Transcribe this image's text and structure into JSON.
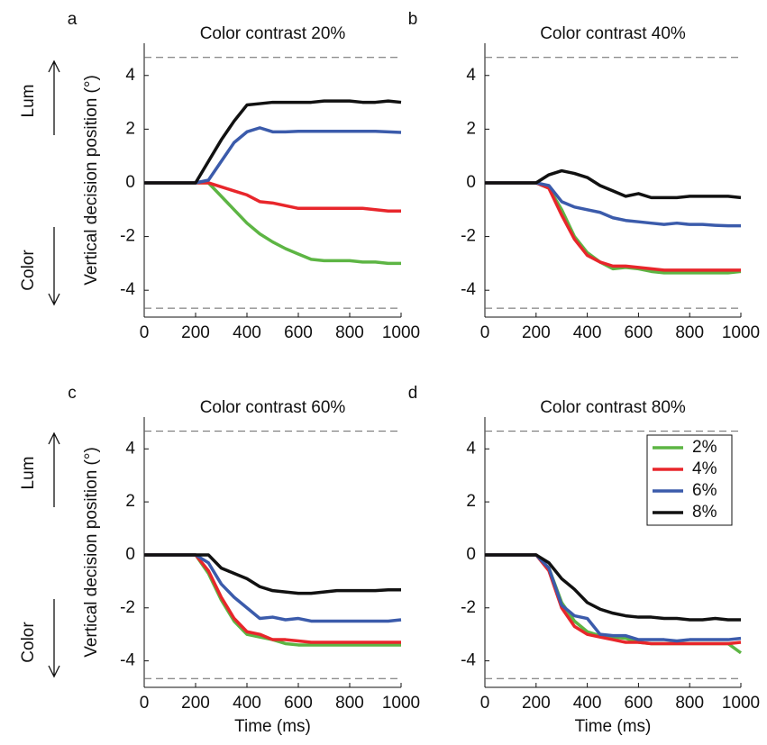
{
  "chart_data": [
    {
      "type": "line",
      "panel_label": "a",
      "title": "Color contrast 20%",
      "ylabel": "Vertical decision position (°)",
      "annotations": [
        "Lum",
        "Color"
      ],
      "x": [
        0,
        50,
        100,
        150,
        200,
        250,
        300,
        350,
        400,
        450,
        500,
        550,
        600,
        650,
        700,
        750,
        800,
        850,
        900,
        950,
        1000
      ],
      "xlim": [
        0,
        1000
      ],
      "ylim": [
        -5,
        5.2
      ],
      "xticks": [
        0,
        200,
        400,
        600,
        800,
        1000
      ],
      "yticks": [
        -4,
        -2,
        0,
        2,
        4
      ],
      "reference_lines": [
        4.67,
        -4.67
      ],
      "series": [
        {
          "color": "#5db544",
          "values": [
            0,
            0,
            0,
            0,
            0,
            0,
            -0.5,
            -1.0,
            -1.5,
            -1.9,
            -2.2,
            -2.45,
            -2.65,
            -2.85,
            -2.9,
            -2.9,
            -2.9,
            -2.95,
            -2.95,
            -3.0,
            -3.0
          ]
        },
        {
          "color": "#e8262b",
          "values": [
            0,
            0,
            0,
            0,
            0,
            0,
            -0.15,
            -0.3,
            -0.45,
            -0.7,
            -0.75,
            -0.85,
            -0.95,
            -0.95,
            -0.95,
            -0.95,
            -0.95,
            -0.95,
            -1.0,
            -1.05,
            -1.05
          ]
        },
        {
          "color": "#3b5bab",
          "values": [
            0,
            0,
            0,
            0,
            0,
            0.1,
            0.8,
            1.5,
            1.9,
            2.05,
            1.9,
            1.9,
            1.92,
            1.92,
            1.92,
            1.92,
            1.92,
            1.92,
            1.92,
            1.9,
            1.88
          ]
        },
        {
          "color": "#111111",
          "values": [
            0,
            0,
            0,
            0,
            0,
            0.8,
            1.6,
            2.3,
            2.9,
            2.95,
            3.0,
            3.0,
            3.0,
            3.0,
            3.05,
            3.05,
            3.05,
            3.0,
            3.0,
            3.05,
            3.0
          ]
        }
      ]
    },
    {
      "type": "line",
      "panel_label": "b",
      "title": "Color contrast 40%",
      "x": [
        0,
        50,
        100,
        150,
        200,
        250,
        300,
        350,
        400,
        450,
        500,
        550,
        600,
        650,
        700,
        750,
        800,
        850,
        900,
        950,
        1000
      ],
      "xlim": [
        0,
        1000
      ],
      "ylim": [
        -5,
        5.2
      ],
      "xticks": [
        0,
        200,
        400,
        600,
        800,
        1000
      ],
      "yticks": [
        -4,
        -2,
        0,
        2,
        4
      ],
      "reference_lines": [
        4.67,
        -4.67
      ],
      "series": [
        {
          "color": "#5db544",
          "values": [
            0,
            0,
            0,
            0,
            0,
            -0.2,
            -1.0,
            -2.0,
            -2.6,
            -2.95,
            -3.2,
            -3.15,
            -3.2,
            -3.3,
            -3.35,
            -3.35,
            -3.35,
            -3.35,
            -3.35,
            -3.35,
            -3.3
          ]
        },
        {
          "color": "#e8262b",
          "values": [
            0,
            0,
            0,
            0,
            0,
            -0.2,
            -1.2,
            -2.1,
            -2.7,
            -2.95,
            -3.1,
            -3.1,
            -3.15,
            -3.2,
            -3.25,
            -3.25,
            -3.25,
            -3.25,
            -3.25,
            -3.25,
            -3.25
          ]
        },
        {
          "color": "#3b5bab",
          "values": [
            0,
            0,
            0,
            0,
            0,
            -0.1,
            -0.7,
            -0.9,
            -1.0,
            -1.1,
            -1.3,
            -1.4,
            -1.45,
            -1.5,
            -1.55,
            -1.5,
            -1.55,
            -1.55,
            -1.58,
            -1.6,
            -1.6
          ]
        },
        {
          "color": "#111111",
          "values": [
            0,
            0,
            0,
            0,
            0,
            0.3,
            0.45,
            0.35,
            0.2,
            -0.1,
            -0.3,
            -0.5,
            -0.4,
            -0.55,
            -0.55,
            -0.55,
            -0.5,
            -0.5,
            -0.5,
            -0.5,
            -0.55
          ]
        }
      ]
    },
    {
      "type": "line",
      "panel_label": "c",
      "title": "Color contrast 60%",
      "ylabel": "Vertical decision position (°)",
      "xlabel": "Time (ms)",
      "annotations": [
        "Lum",
        "Color"
      ],
      "x": [
        0,
        50,
        100,
        150,
        200,
        250,
        300,
        350,
        400,
        450,
        500,
        550,
        600,
        650,
        700,
        750,
        800,
        850,
        900,
        950,
        1000
      ],
      "xlim": [
        0,
        1000
      ],
      "ylim": [
        -5,
        5.2
      ],
      "xticks": [
        0,
        200,
        400,
        600,
        800,
        1000
      ],
      "yticks": [
        -4,
        -2,
        0,
        2,
        4
      ],
      "reference_lines": [
        4.67,
        -4.67
      ],
      "series": [
        {
          "color": "#5db544",
          "values": [
            0,
            0,
            0,
            0,
            0,
            -0.7,
            -1.7,
            -2.5,
            -3.0,
            -3.1,
            -3.2,
            -3.35,
            -3.4,
            -3.4,
            -3.4,
            -3.4,
            -3.4,
            -3.4,
            -3.4,
            -3.4,
            -3.4
          ]
        },
        {
          "color": "#e8262b",
          "values": [
            0,
            0,
            0,
            0,
            0,
            -0.6,
            -1.6,
            -2.4,
            -2.9,
            -3.0,
            -3.2,
            -3.2,
            -3.25,
            -3.3,
            -3.3,
            -3.3,
            -3.3,
            -3.3,
            -3.3,
            -3.3,
            -3.3
          ]
        },
        {
          "color": "#3b5bab",
          "values": [
            0,
            0,
            0,
            0,
            0,
            -0.3,
            -1.1,
            -1.6,
            -2.0,
            -2.4,
            -2.35,
            -2.45,
            -2.4,
            -2.5,
            -2.5,
            -2.5,
            -2.5,
            -2.5,
            -2.5,
            -2.5,
            -2.45
          ]
        },
        {
          "color": "#111111",
          "values": [
            0,
            0,
            0,
            0,
            0,
            0,
            -0.5,
            -0.7,
            -0.9,
            -1.2,
            -1.35,
            -1.4,
            -1.45,
            -1.45,
            -1.4,
            -1.35,
            -1.35,
            -1.35,
            -1.35,
            -1.32,
            -1.32
          ]
        }
      ]
    },
    {
      "type": "line",
      "panel_label": "d",
      "title": "Color contrast 80%",
      "xlabel": "Time (ms)",
      "legend": "upper right",
      "x": [
        0,
        50,
        100,
        150,
        200,
        250,
        300,
        350,
        400,
        450,
        500,
        550,
        600,
        650,
        700,
        750,
        800,
        850,
        900,
        950,
        1000
      ],
      "xlim": [
        0,
        1000
      ],
      "ylim": [
        -5,
        5.2
      ],
      "xticks": [
        0,
        200,
        400,
        600,
        800,
        1000
      ],
      "yticks": [
        -4,
        -2,
        0,
        2,
        4
      ],
      "reference_lines": [
        4.67,
        -4.67
      ],
      "series": [
        {
          "name": "2%",
          "color": "#5db544",
          "values": [
            0,
            0,
            0,
            0,
            0,
            -0.5,
            -1.8,
            -2.5,
            -2.9,
            -3.05,
            -3.1,
            -3.15,
            -3.3,
            -3.35,
            -3.35,
            -3.35,
            -3.35,
            -3.35,
            -3.35,
            -3.35,
            -3.7
          ]
        },
        {
          "name": "4%",
          "color": "#e8262b",
          "values": [
            0,
            0,
            0,
            0,
            0,
            -0.6,
            -2.0,
            -2.7,
            -3.0,
            -3.1,
            -3.2,
            -3.3,
            -3.3,
            -3.35,
            -3.35,
            -3.35,
            -3.35,
            -3.35,
            -3.35,
            -3.35,
            -3.3
          ]
        },
        {
          "name": "6%",
          "color": "#3b5bab",
          "values": [
            0,
            0,
            0,
            0,
            0,
            -0.5,
            -1.9,
            -2.3,
            -2.4,
            -3.0,
            -3.05,
            -3.05,
            -3.2,
            -3.2,
            -3.2,
            -3.25,
            -3.2,
            -3.2,
            -3.2,
            -3.2,
            -3.15
          ]
        },
        {
          "name": "8%",
          "color": "#111111",
          "values": [
            0,
            0,
            0,
            0,
            0,
            -0.3,
            -0.9,
            -1.3,
            -1.8,
            -2.05,
            -2.2,
            -2.3,
            -2.35,
            -2.35,
            -2.4,
            -2.4,
            -2.45,
            -2.45,
            -2.4,
            -2.45,
            -2.45
          ]
        }
      ]
    }
  ]
}
